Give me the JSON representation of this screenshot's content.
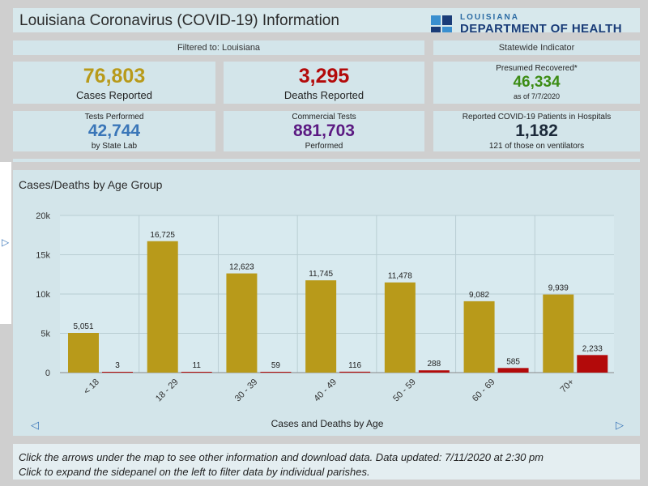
{
  "header": {
    "title": "Louisiana Coronavirus (COVID-19) Information",
    "logo_small": "LOUISIANA",
    "logo_big": "DEPARTMENT OF HEALTH"
  },
  "filter": {
    "label": "Filtered to: Louisiana"
  },
  "statewide": {
    "label": "Statewide Indicator"
  },
  "cards": {
    "cases": {
      "value": "76,803",
      "label": "Cases Reported"
    },
    "deaths": {
      "value": "3,295",
      "label": "Deaths Reported"
    },
    "recovered": {
      "label": "Presumed Recovered*",
      "value": "46,334",
      "date": "as of 7/7/2020"
    },
    "tests": {
      "label": "Tests Performed",
      "value": "42,744",
      "sub": "by State Lab"
    },
    "commercial": {
      "label": "Commercial Tests",
      "value": "881,703",
      "sub": "Performed"
    },
    "hospital": {
      "label": "Reported COVID-19 Patients in Hospitals",
      "value": "1,182",
      "sub": "121 of those on ventilators"
    }
  },
  "colors": {
    "cases": "#b89a1a",
    "deaths": "#b30a0a",
    "recovered": "#3c8c14",
    "tests": "#3a76b8",
    "commercial": "#5b1a82"
  },
  "chart_panel": {
    "title": "Cases/Deaths by Age Group"
  },
  "chart_data": {
    "type": "bar",
    "categories": [
      "< 18",
      "18 - 29",
      "30 - 39",
      "40 - 49",
      "50 - 59",
      "60 - 69",
      "70+"
    ],
    "series": [
      {
        "values": [
          5051,
          16725,
          12623,
          11745,
          11478,
          9082,
          9939
        ],
        "labels": [
          "5,051",
          "16,725",
          "12,623",
          "11,745",
          "11,478",
          "9,082",
          "9,939"
        ],
        "color": "#b89a1a"
      },
      {
        "values": [
          3,
          11,
          59,
          116,
          288,
          585,
          2233
        ],
        "labels": [
          "3",
          "11",
          "59",
          "116",
          "288",
          "585",
          "2,233"
        ],
        "color": "#b30a0a"
      }
    ],
    "ylim": [
      0,
      20000
    ],
    "yticks": [
      0,
      5000,
      10000,
      15000,
      20000
    ],
    "ytick_labels": [
      "0",
      "5k",
      "10k",
      "15k",
      "20k"
    ],
    "grid": true
  },
  "nav": {
    "label": "Cases and Deaths by Age",
    "prev_icon": "chevron-left-icon",
    "next_icon": "chevron-right-icon"
  },
  "footer": {
    "line1": "Click the arrows under the map to see other information and download data. Data updated: 7/11/2020 at 2:30 pm",
    "line2": "Click to expand the sidepanel on the left to filter data by individual parishes."
  }
}
